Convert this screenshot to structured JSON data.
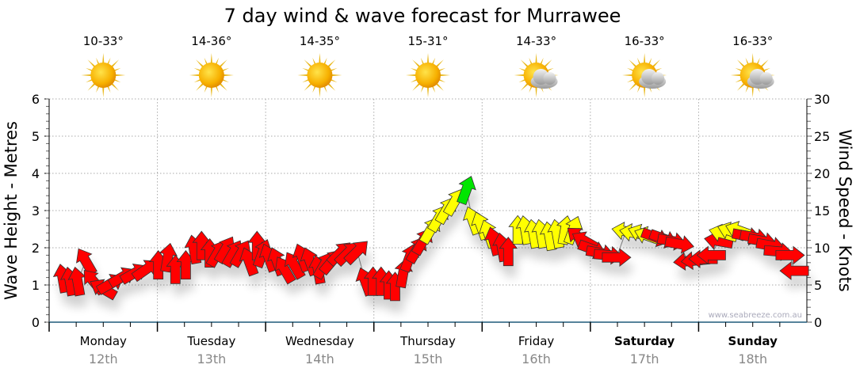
{
  "chart_data": {
    "type": "scatter",
    "title": "7 day wind & wave forecast for Murrawee",
    "ylabel_left": "Wave Height - Metres",
    "ylabel_right": "Wind Speed - Knots",
    "ylim_left": [
      0,
      6
    ],
    "ylim_right": [
      0,
      30
    ],
    "yticks_left": [
      "0",
      "1",
      "2",
      "3",
      "4",
      "5",
      "6"
    ],
    "yticks_right": [
      "0",
      "5",
      "10",
      "15",
      "20",
      "25",
      "30"
    ],
    "grid": true,
    "watermark": "www.seabreeze.com.au",
    "colors": {
      "r": "#ff0000",
      "y": "#ffff00",
      "g": "#00e600",
      "stroke": "#333333"
    },
    "days": [
      {
        "day": "Monday",
        "date": "12th",
        "temp": "10-33°",
        "icon": "sun-icon",
        "bold": false
      },
      {
        "day": "Tuesday",
        "date": "13th",
        "temp": "14-36°",
        "icon": "sun-icon",
        "bold": false
      },
      {
        "day": "Wednesday",
        "date": "14th",
        "temp": "14-35°",
        "icon": "sun-icon",
        "bold": false
      },
      {
        "day": "Thursday",
        "date": "15th",
        "temp": "15-31°",
        "icon": "sun-icon",
        "bold": false
      },
      {
        "day": "Friday",
        "date": "16th",
        "temp": "14-33°",
        "icon": "sun-cloud-icon",
        "bold": false
      },
      {
        "day": "Saturday",
        "date": "17th",
        "temp": "16-33°",
        "icon": "sun-cloud-icon",
        "bold": true
      },
      {
        "day": "Sunday",
        "date": "18th",
        "temp": "16-33°",
        "icon": "sun-cloud-icon",
        "bold": true
      }
    ],
    "wind_fields": [
      "hour",
      "knots",
      "direction_deg",
      "color"
    ],
    "wind": [
      [
        3,
        5.9,
        -10,
        "r"
      ],
      [
        4.6,
        5.5,
        -10,
        "r"
      ],
      [
        6.3,
        5.5,
        -10,
        "r"
      ],
      [
        8.1,
        8.2,
        -30,
        "r"
      ],
      [
        9.8,
        5.5,
        -40,
        "r"
      ],
      [
        11.9,
        4.5,
        -60,
        "r"
      ],
      [
        13.7,
        5.2,
        60,
        "r"
      ],
      [
        16.3,
        6.1,
        60,
        "r"
      ],
      [
        18.9,
        6.6,
        60,
        "r"
      ],
      [
        21.5,
        7.1,
        55,
        "r"
      ],
      [
        24.2,
        7.7,
        0,
        "r"
      ],
      [
        26.3,
        8.7,
        10,
        "r"
      ],
      [
        28,
        7.1,
        0,
        "r"
      ],
      [
        30.3,
        7.7,
        0,
        "r"
      ],
      [
        32.1,
        9.8,
        -10,
        "r"
      ],
      [
        33.8,
        10.3,
        0,
        "r"
      ],
      [
        35.6,
        9.3,
        0,
        "r"
      ],
      [
        37.3,
        9.3,
        30,
        "r"
      ],
      [
        39.1,
        9.8,
        30,
        "r"
      ],
      [
        40.8,
        9.3,
        30,
        "r"
      ],
      [
        42.6,
        9.3,
        30,
        "r"
      ],
      [
        44.3,
        8.2,
        -20,
        "r"
      ],
      [
        46.1,
        10.3,
        0,
        "r"
      ],
      [
        47.3,
        9.3,
        20,
        "r"
      ],
      [
        48.7,
        8.7,
        -20,
        "r"
      ],
      [
        50.5,
        8.2,
        -20,
        "r"
      ],
      [
        52.2,
        7.1,
        -30,
        "r"
      ],
      [
        54.3,
        7.7,
        -30,
        "r"
      ],
      [
        56.1,
        8.7,
        -20,
        "r"
      ],
      [
        57.8,
        8.2,
        -20,
        "r"
      ],
      [
        59.6,
        7.1,
        -10,
        "r"
      ],
      [
        61,
        7.7,
        30,
        "r"
      ],
      [
        62.7,
        8.2,
        40,
        "r"
      ],
      [
        64.5,
        9.3,
        45,
        "r"
      ],
      [
        66.2,
        9.3,
        45,
        "r"
      ],
      [
        68.3,
        9.5,
        45,
        "r"
      ],
      [
        70.1,
        5.5,
        -20,
        "r"
      ],
      [
        71.8,
        5.5,
        0,
        "r"
      ],
      [
        73.6,
        5.5,
        0,
        "r"
      ],
      [
        75.3,
        5.0,
        0,
        "r"
      ],
      [
        76.7,
        4.8,
        0,
        "r"
      ],
      [
        78.5,
        6.6,
        10,
        "r"
      ],
      [
        79.9,
        8.7,
        20,
        "r"
      ],
      [
        81.6,
        9.8,
        30,
        "r"
      ],
      [
        82.9,
        10.9,
        30,
        "r"
      ],
      [
        84.6,
        12.4,
        30,
        "y"
      ],
      [
        86.4,
        14.0,
        30,
        "y"
      ],
      [
        88.1,
        15.1,
        30,
        "y"
      ],
      [
        89.9,
        16.2,
        30,
        "y"
      ],
      [
        92.5,
        17.8,
        20,
        "g"
      ],
      [
        93.9,
        13.7,
        -20,
        "y"
      ],
      [
        95.7,
        13.0,
        -20,
        "y"
      ],
      [
        97.4,
        11.9,
        -20,
        "y"
      ],
      [
        98.6,
        10.9,
        -15,
        "r"
      ],
      [
        100.4,
        10.1,
        -10,
        "r"
      ],
      [
        101.8,
        9.5,
        0,
        "r"
      ],
      [
        103.9,
        12.4,
        0,
        "y"
      ],
      [
        105.6,
        12.4,
        -10,
        "y"
      ],
      [
        107.4,
        11.9,
        -10,
        "y"
      ],
      [
        109.1,
        11.9,
        -10,
        "y"
      ],
      [
        110.9,
        11.6,
        -10,
        "y"
      ],
      [
        112.6,
        11.9,
        -10,
        "y"
      ],
      [
        114.4,
        12.4,
        10,
        "y"
      ],
      [
        116.2,
        12.4,
        20,
        "y"
      ],
      [
        117.4,
        11.4,
        -50,
        "r"
      ],
      [
        118.8,
        10.9,
        -60,
        "r"
      ],
      [
        120.5,
        9.8,
        110,
        "r"
      ],
      [
        122.3,
        9.3,
        100,
        "r"
      ],
      [
        124,
        9.0,
        95,
        "r"
      ],
      [
        125.8,
        8.7,
        90,
        "r"
      ],
      [
        127.9,
        12.2,
        -80,
        "y"
      ],
      [
        129.6,
        12.0,
        -80,
        "y"
      ],
      [
        131.4,
        11.9,
        -70,
        "y"
      ],
      [
        132.8,
        11.6,
        -70,
        "y"
      ],
      [
        134.5,
        11.4,
        110,
        "r"
      ],
      [
        136.3,
        11.2,
        110,
        "r"
      ],
      [
        138.1,
        10.9,
        100,
        "r"
      ],
      [
        139.8,
        10.5,
        100,
        "r"
      ],
      [
        141.6,
        8.2,
        -95,
        "r"
      ],
      [
        143.3,
        8.3,
        -95,
        "r"
      ],
      [
        145,
        8.5,
        -90,
        "r"
      ],
      [
        146.8,
        9.0,
        -90,
        "r"
      ],
      [
        148.4,
        10.9,
        -80,
        "r"
      ],
      [
        149.4,
        11.9,
        -75,
        "y"
      ],
      [
        151.2,
        12.2,
        -70,
        "y"
      ],
      [
        153,
        12.3,
        -70,
        "y"
      ],
      [
        154.7,
        11.6,
        100,
        "r"
      ],
      [
        156.4,
        11.4,
        100,
        "r"
      ],
      [
        158.2,
        10.9,
        100,
        "r"
      ],
      [
        160,
        10.3,
        100,
        "r"
      ],
      [
        161.7,
        9.5,
        95,
        "r"
      ],
      [
        164.3,
        9.0,
        90,
        "r"
      ],
      [
        165.2,
        6.9,
        -90,
        "r"
      ]
    ]
  }
}
